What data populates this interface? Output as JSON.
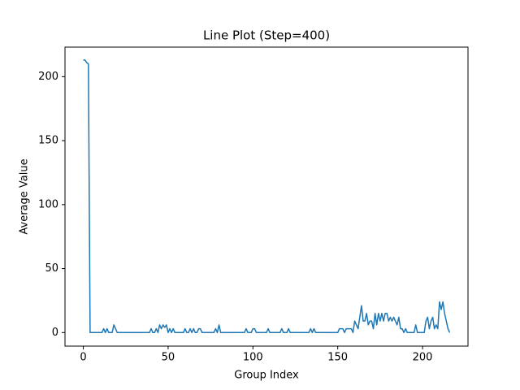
{
  "chart_data": {
    "type": "line",
    "title": "Line Plot (Step=400)",
    "xlabel": "Group Index",
    "ylabel": "Average Value",
    "series": [
      {
        "color": "#1f77b4",
        "values": [
          213,
          213,
          211,
          210,
          0,
          0,
          0,
          0,
          0,
          0,
          0,
          0,
          3,
          0,
          3,
          0,
          0,
          0,
          6,
          3,
          0,
          0,
          0,
          0,
          0,
          0,
          0,
          0,
          0,
          0,
          0,
          0,
          0,
          0,
          0,
          0,
          0,
          0,
          0,
          0,
          3,
          0,
          0,
          3,
          0,
          6,
          3,
          6,
          4,
          6,
          0,
          3,
          0,
          3,
          0,
          0,
          0,
          0,
          0,
          0,
          3,
          0,
          0,
          3,
          0,
          3,
          0,
          0,
          3,
          3,
          0,
          0,
          0,
          0,
          0,
          0,
          0,
          0,
          3,
          0,
          6,
          0,
          0,
          0,
          0,
          0,
          0,
          0,
          0,
          0,
          0,
          0,
          0,
          0,
          0,
          0,
          3,
          0,
          0,
          0,
          3,
          3,
          0,
          0,
          0,
          0,
          0,
          0,
          0,
          3,
          0,
          0,
          0,
          0,
          0,
          0,
          0,
          3,
          0,
          0,
          0,
          3,
          0,
          0,
          0,
          0,
          0,
          0,
          0,
          0,
          0,
          0,
          0,
          0,
          3,
          0,
          3,
          0,
          0,
          0,
          0,
          0,
          0,
          0,
          0,
          0,
          0,
          0,
          0,
          0,
          0,
          3,
          3,
          3,
          0,
          3,
          3,
          3,
          3,
          0,
          9,
          6,
          3,
          12,
          21,
          9,
          9,
          15,
          6,
          9,
          9,
          3,
          15,
          6,
          15,
          9,
          15,
          9,
          15,
          15,
          9,
          12,
          9,
          12,
          9,
          6,
          12,
          3,
          3,
          0,
          3,
          0,
          0,
          0,
          0,
          0,
          6,
          0,
          0,
          0,
          0,
          0,
          9,
          12,
          3,
          9,
          12,
          3,
          6,
          3,
          24,
          18,
          24,
          15,
          9,
          3,
          0
        ]
      }
    ],
    "xlim": [
      -10.8,
      226.8
    ],
    "xticks": [
      0,
      50,
      100,
      150,
      200
    ],
    "ylim": [
      -10.6,
      223.1
    ],
    "yticks": [
      0,
      50,
      100,
      150,
      200
    ]
  }
}
